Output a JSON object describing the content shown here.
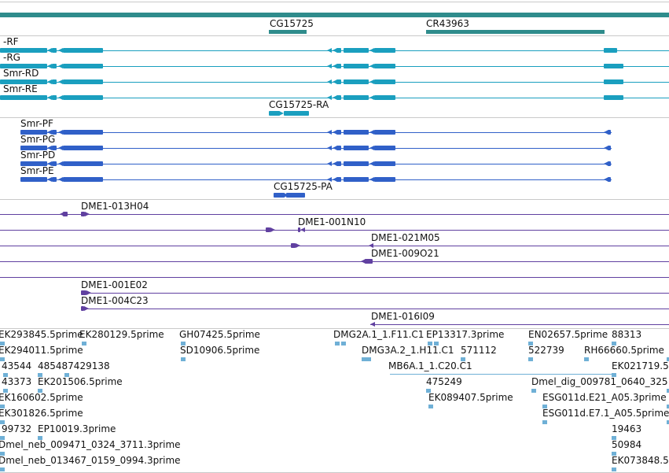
{
  "colors": {
    "gene_bar": "#2f8c8c",
    "transcript_cyan": "#1a9fbf",
    "transcript_blue": "#3060c8",
    "clone_purple": "#6040a0",
    "est_light": "#6fb0d6",
    "divider": "#c9c9c9"
  },
  "gene_track": {
    "labels": [
      "CG15725",
      "CR43963"
    ]
  },
  "transcripts_rna": {
    "labels": [
      "-RF",
      "-RG",
      "Smr-RD",
      "Smr-RE",
      "CG15725-RA"
    ]
  },
  "transcripts_protein": {
    "labels": [
      "Smr-PF",
      "Smr-PG",
      "Smr-PD",
      "Smr-PE",
      "CG15725-PA"
    ]
  },
  "clones": {
    "labels": [
      "DME1-013H04",
      "DME1-001N10",
      "DME1-021M05",
      "DME1-009O21",
      "DME1-001E02",
      "DME1-004C23",
      "DME1-016I09"
    ]
  },
  "ests": {
    "labels": [
      "EK293845.5prime",
      "EK280129.5prime",
      "GH07425.5prime",
      "DMG2A.1_1.F11.C1",
      "EP13317.3prime",
      "EN02657.5prime",
      "88313",
      "EK294011.5prime",
      "SD10906.5prime",
      "DMG3A.2_1.H11.C1",
      "571112",
      "522739",
      "RH66660.5prime",
      "43544",
      "485487429138",
      "MB6A.1_1.C20.C1",
      "EK021719.5",
      "43373",
      "EK201506.5prime",
      "475249",
      "Dmel_dig_009781_0640_325",
      "EK160602.5prime",
      "EK089407.5prime",
      "ESG011d.E21_A05.3prime",
      "EK301826.5prime",
      "ESG011d.E7.1_A05.5prime",
      "99732",
      "EP10019.3prime",
      "19463",
      "Dmel_neb_009471_0324_3711.3prime",
      "50984",
      "Dmel_neb_013467_0159_0994.3prime",
      "EK073848.5"
    ]
  }
}
